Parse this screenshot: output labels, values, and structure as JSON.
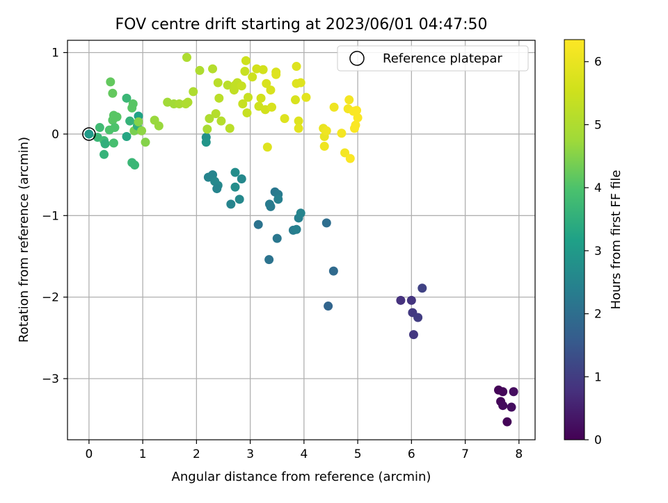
{
  "chart_data": {
    "type": "scatter",
    "title": "FOV centre drift starting at 2023/06/01 04:47:50",
    "xlabel": "Angular distance from reference (arcmin)",
    "ylabel": "Rotation from reference (arcmin)",
    "xlim": [
      -0.4,
      8.3
    ],
    "ylim": [
      -3.75,
      1.15
    ],
    "x_ticks": [
      0,
      1,
      2,
      3,
      4,
      5,
      6,
      7,
      8
    ],
    "y_ticks": [
      1,
      0,
      -1,
      -2,
      -3
    ],
    "x_tick_labels": [
      "0",
      "1",
      "2",
      "3",
      "4",
      "5",
      "6",
      "7",
      "8"
    ],
    "y_tick_labels": [
      "1",
      "0",
      "−1",
      "−2",
      "−3"
    ],
    "grid": true,
    "colorbar": {
      "label": "Hours from first FF file",
      "colormap": "viridis",
      "range": [
        0,
        6.35
      ],
      "ticks": [
        0,
        1,
        2,
        3,
        4,
        5,
        6
      ],
      "tick_labels": [
        "0",
        "1",
        "2",
        "3",
        "4",
        "5",
        "6"
      ]
    },
    "legend": {
      "label": "Reference platepar",
      "position": "top-right"
    },
    "reference_point": {
      "x": 0,
      "y": 0
    },
    "points": [
      [
        7.62,
        -3.14,
        0.05
      ],
      [
        7.7,
        -3.16,
        0.1
      ],
      [
        7.66,
        -3.28,
        0.1
      ],
      [
        7.7,
        -3.33,
        0.15
      ],
      [
        7.86,
        -3.35,
        0.18
      ],
      [
        7.9,
        -3.16,
        0.2
      ],
      [
        7.78,
        -3.53,
        0.05
      ],
      [
        5.8,
        -2.04,
        0.8
      ],
      [
        6.0,
        -2.04,
        0.85
      ],
      [
        6.02,
        -2.19,
        0.95
      ],
      [
        6.12,
        -2.25,
        1.0
      ],
      [
        6.04,
        -2.46,
        0.9
      ],
      [
        6.2,
        -1.89,
        1.1
      ],
      [
        4.42,
        -1.09,
        2.0
      ],
      [
        4.45,
        -2.11,
        1.8
      ],
      [
        4.55,
        -1.68,
        1.9
      ],
      [
        3.15,
        -1.11,
        2.1
      ],
      [
        3.35,
        -1.54,
        2.1
      ],
      [
        3.5,
        -1.28,
        2.2
      ],
      [
        3.38,
        -0.89,
        2.3
      ],
      [
        3.36,
        -0.86,
        2.3
      ],
      [
        3.46,
        -0.71,
        2.2
      ],
      [
        3.52,
        -0.74,
        2.3
      ],
      [
        3.52,
        -0.8,
        2.4
      ],
      [
        3.8,
        -1.18,
        2.3
      ],
      [
        3.86,
        -1.17,
        2.4
      ],
      [
        3.9,
        -1.03,
        2.4
      ],
      [
        3.94,
        -0.97,
        2.5
      ],
      [
        2.22,
        -0.53,
        2.5
      ],
      [
        2.3,
        -0.5,
        2.5
      ],
      [
        2.34,
        -0.58,
        2.6
      ],
      [
        2.4,
        -0.63,
        2.6
      ],
      [
        2.38,
        -0.67,
        2.5
      ],
      [
        2.18,
        -0.04,
        2.8
      ],
      [
        2.18,
        -0.1,
        2.9
      ],
      [
        2.64,
        -0.86,
        2.5
      ],
      [
        2.72,
        -0.65,
        2.7
      ],
      [
        2.72,
        -0.47,
        2.7
      ],
      [
        2.8,
        -0.8,
        2.6
      ],
      [
        2.84,
        -0.55,
        2.6
      ],
      [
        0.0,
        0.0,
        3.0
      ],
      [
        0.2,
        0.08,
        3.8
      ],
      [
        0.16,
        -0.04,
        3.7
      ],
      [
        0.28,
        -0.08,
        3.8
      ],
      [
        0.28,
        -0.25,
        3.6
      ],
      [
        0.3,
        -0.12,
        3.5
      ],
      [
        0.38,
        0.05,
        4.0
      ],
      [
        0.44,
        0.17,
        4.1
      ],
      [
        0.46,
        0.23,
        4.1
      ],
      [
        0.48,
        0.08,
        4.0
      ],
      [
        0.52,
        0.21,
        4.1
      ],
      [
        0.46,
        -0.11,
        3.9
      ],
      [
        0.4,
        0.64,
        4.2
      ],
      [
        0.44,
        0.5,
        4.2
      ],
      [
        0.7,
        0.44,
        3.7
      ],
      [
        0.7,
        -0.03,
        3.3
      ],
      [
        0.76,
        0.16,
        3.6
      ],
      [
        0.8,
        0.32,
        4.1
      ],
      [
        0.82,
        0.37,
        4.1
      ],
      [
        0.8,
        -0.35,
        3.7
      ],
      [
        0.85,
        -0.38,
        3.7
      ],
      [
        0.84,
        0.04,
        4.4
      ],
      [
        0.9,
        0.1,
        3.5
      ],
      [
        0.92,
        0.22,
        3.2
      ],
      [
        0.92,
        0.15,
        4.5
      ],
      [
        0.98,
        0.04,
        4.6
      ],
      [
        1.05,
        -0.1,
        4.5
      ],
      [
        1.22,
        0.17,
        4.7
      ],
      [
        1.3,
        0.1,
        4.7
      ],
      [
        1.46,
        0.39,
        4.8
      ],
      [
        1.58,
        0.37,
        4.8
      ],
      [
        1.68,
        0.37,
        4.9
      ],
      [
        1.8,
        0.37,
        5.0
      ],
      [
        1.84,
        0.39,
        5.0
      ],
      [
        1.94,
        0.52,
        5.0
      ],
      [
        2.06,
        0.78,
        5.0
      ],
      [
        1.82,
        0.94,
        5.0
      ],
      [
        2.3,
        0.8,
        5.1
      ],
      [
        2.24,
        0.19,
        5.0
      ],
      [
        2.2,
        0.06,
        4.9
      ],
      [
        2.36,
        0.25,
        5.1
      ],
      [
        2.42,
        0.44,
        5.2
      ],
      [
        2.4,
        0.63,
        5.2
      ],
      [
        2.46,
        0.16,
        5.1
      ],
      [
        2.58,
        0.6,
        5.2
      ],
      [
        2.62,
        0.07,
        5.2
      ],
      [
        2.7,
        0.54,
        5.3
      ],
      [
        2.72,
        0.6,
        5.3
      ],
      [
        2.76,
        0.63,
        5.3
      ],
      [
        2.84,
        0.59,
        5.4
      ],
      [
        2.86,
        0.37,
        5.4
      ],
      [
        2.9,
        0.77,
        5.4
      ],
      [
        2.94,
        0.26,
        5.4
      ],
      [
        2.96,
        0.45,
        5.4
      ],
      [
        2.92,
        0.9,
        5.5
      ],
      [
        3.04,
        0.7,
        5.5
      ],
      [
        3.12,
        0.8,
        5.6
      ],
      [
        3.16,
        0.34,
        5.5
      ],
      [
        3.2,
        0.44,
        5.6
      ],
      [
        3.24,
        0.79,
        5.6
      ],
      [
        3.28,
        0.3,
        5.6
      ],
      [
        3.3,
        0.62,
        5.7
      ],
      [
        3.32,
        -0.16,
        5.8
      ],
      [
        3.38,
        0.54,
        5.7
      ],
      [
        3.4,
        0.33,
        5.7
      ],
      [
        3.48,
        0.76,
        5.7
      ],
      [
        3.48,
        0.73,
        5.8
      ],
      [
        3.64,
        0.19,
        5.8
      ],
      [
        3.84,
        0.42,
        5.7
      ],
      [
        3.86,
        0.83,
        5.8
      ],
      [
        3.86,
        0.62,
        5.8
      ],
      [
        3.9,
        0.16,
        5.8
      ],
      [
        3.9,
        0.07,
        5.9
      ],
      [
        3.94,
        0.63,
        5.8
      ],
      [
        4.04,
        0.45,
        5.9
      ],
      [
        4.36,
        0.07,
        6.0
      ],
      [
        4.38,
        -0.03,
        6.0
      ],
      [
        4.38,
        -0.15,
        6.1
      ],
      [
        4.42,
        0.04,
        6.1
      ],
      [
        4.56,
        0.33,
        6.1
      ],
      [
        4.7,
        0.01,
        6.2
      ],
      [
        4.76,
        -0.23,
        6.2
      ],
      [
        4.82,
        0.31,
        6.2
      ],
      [
        4.84,
        0.42,
        6.2
      ],
      [
        4.86,
        -0.3,
        6.3
      ],
      [
        4.92,
        0.28,
        6.3
      ],
      [
        4.94,
        0.07,
        6.3
      ],
      [
        4.96,
        0.11,
        6.3
      ],
      [
        4.98,
        0.29,
        6.3
      ],
      [
        5.0,
        0.2,
        6.3
      ]
    ]
  }
}
